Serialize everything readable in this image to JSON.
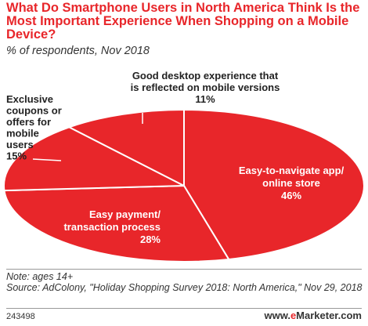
{
  "header": {
    "title": "What Do Smartphone Users in North America Think Is the Most Important Experience When Shopping on a Mobile Device?",
    "subtitle": "% of respondents, Nov 2018"
  },
  "chart_data": {
    "type": "pie",
    "categories": [
      "Easy-to-navigate app/ online store",
      "Easy payment/ transaction process",
      "Exclusive coupons or offers for mobile users",
      "Good desktop experience that is reflected on mobile versions"
    ],
    "values": [
      46,
      28,
      15,
      11
    ],
    "value_labels": [
      "46%",
      "28%",
      "15%",
      "11%"
    ],
    "colors": [
      "#e8262a",
      "#e8262a",
      "#e8262a",
      "#e8262a"
    ],
    "slice_edge_color": "#ffffff"
  },
  "footer": {
    "note": "Note: ages 14+",
    "source": "Source: AdColony, \"Holiday Shopping Survey 2018: North America,\" Nov 29, 2018",
    "chart_id": "243498",
    "brand_prefix": "www.",
    "brand_accent": "e",
    "brand_suffix": "Marketer.com"
  }
}
